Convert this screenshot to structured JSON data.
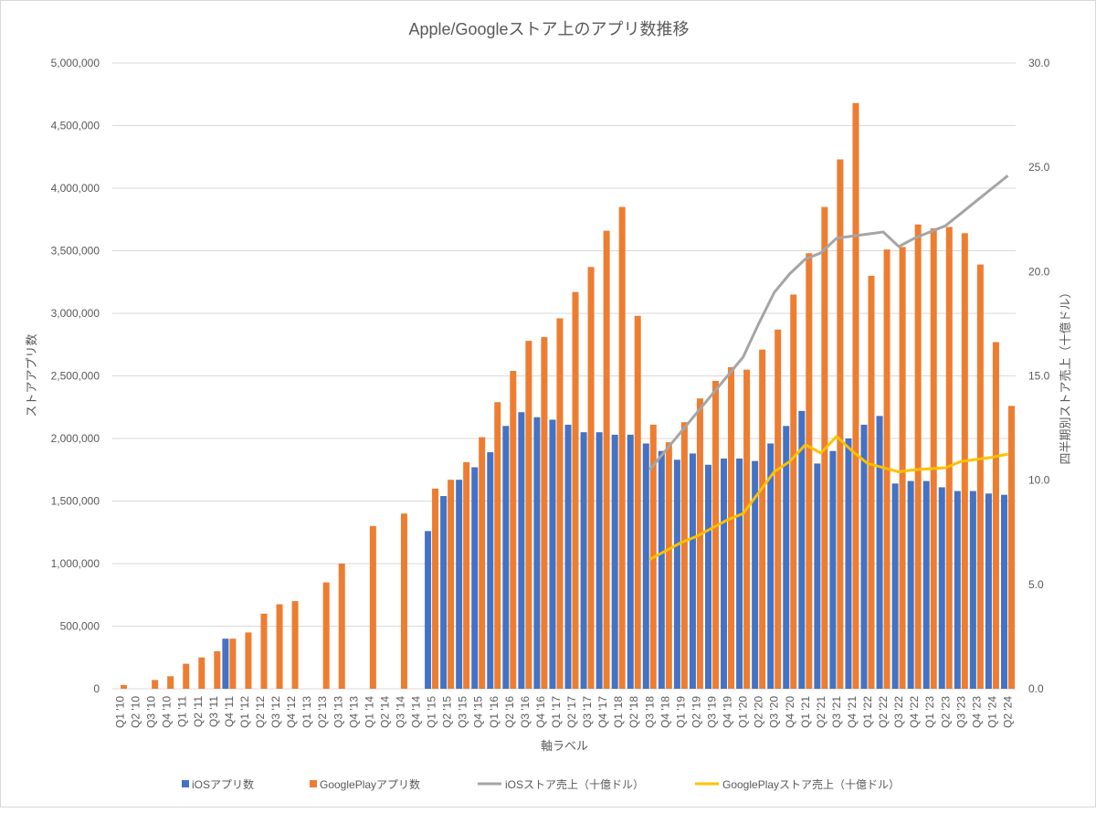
{
  "chart_data": {
    "type": "bar+line",
    "title": "Apple/Googleストア上のアプリ数推移",
    "xlabel": "軸ラベル",
    "ylabel": "ストアアプリ数",
    "y2label": "四半期別ストア売上（十億ドル）",
    "ylim": [
      0,
      5000000
    ],
    "y2lim": [
      0,
      30
    ],
    "yticks": [
      "0",
      "500,000",
      "1,000,000",
      "1,500,000",
      "2,000,000",
      "2,500,000",
      "3,000,000",
      "3,500,000",
      "4,000,000",
      "4,500,000",
      "5,000,000"
    ],
    "y2ticks": [
      "0.0",
      "5.0",
      "10.0",
      "15.0",
      "20.0",
      "25.0",
      "30.0"
    ],
    "grid": true,
    "legend_position": "bottom",
    "categories": [
      "Q1 '10",
      "Q2 '10",
      "Q3 '10",
      "Q4 '10",
      "Q1 '11",
      "Q2 '11",
      "Q3 '11",
      "Q4 '11",
      "Q1 '12",
      "Q2 '12",
      "Q3 '12",
      "Q4 '12",
      "Q1 '13",
      "Q2 '13",
      "Q3 '13",
      "Q4 '13",
      "Q1 '14",
      "Q2 '14",
      "Q3 '14",
      "Q4 '14",
      "Q1 '15",
      "Q2 '15",
      "Q3 '15",
      "Q4 '15",
      "Q1 '16",
      "Q2 '16",
      "Q3 '16",
      "Q4 '16",
      "Q1 '17",
      "Q2 '17",
      "Q3 '17",
      "Q4 '17",
      "Q1 '18",
      "Q2 '18",
      "Q3 '18",
      "Q4 '18",
      "Q1 '19",
      "Q2 '19",
      "Q3 '19",
      "Q4 '19",
      "Q1 '20",
      "Q2 '20",
      "Q3 '20",
      "Q4 '20",
      "Q1 '21",
      "Q2 '21",
      "Q3 '21",
      "Q4 '21",
      "Q1 '22",
      "Q2 '22",
      "Q3 '22",
      "Q4 '22",
      "Q1 '23",
      "Q2 '23",
      "Q3 '23",
      "Q4 '23",
      "Q1 '24",
      "Q2 '24"
    ],
    "series": [
      {
        "name": "iOSアプリ数",
        "type": "bar",
        "axis": "left",
        "color": "#4472C4",
        "values": [
          null,
          null,
          null,
          null,
          null,
          null,
          null,
          400000,
          null,
          null,
          null,
          null,
          null,
          null,
          null,
          null,
          null,
          null,
          null,
          null,
          1260000,
          1540000,
          1670000,
          1770000,
          1890000,
          2100000,
          2210000,
          2170000,
          2150000,
          2110000,
          2050000,
          2050000,
          2030000,
          2030000,
          1960000,
          1900000,
          1830000,
          1880000,
          1790000,
          1840000,
          1840000,
          1820000,
          1960000,
          2100000,
          2220000,
          1800000,
          1900000,
          2000000,
          2110000,
          2180000,
          1640000,
          1660000,
          1660000,
          1610000,
          1580000,
          1580000,
          1560000,
          1550000
        ]
      },
      {
        "name": "GooglePlayアプリ数",
        "type": "bar",
        "axis": "left",
        "color": "#ED7D31",
        "values": [
          30000,
          null,
          70000,
          100000,
          200000,
          250000,
          300000,
          400000,
          450000,
          600000,
          675000,
          700000,
          null,
          850000,
          1000000,
          null,
          1300000,
          null,
          1400000,
          null,
          1600000,
          1670000,
          1810000,
          2010000,
          2290000,
          2540000,
          2780000,
          2810000,
          2960000,
          3170000,
          3370000,
          3660000,
          3850000,
          2980000,
          2110000,
          1970000,
          2130000,
          2320000,
          2460000,
          2570000,
          2550000,
          2710000,
          2870000,
          3150000,
          3480000,
          3850000,
          4230000,
          4680000,
          3300000,
          3510000,
          3530000,
          3710000,
          3680000,
          3690000,
          3640000,
          3390000,
          2770000,
          2260000
        ]
      },
      {
        "name": "iOSストア売上（十億ドル）",
        "type": "line",
        "axis": "right",
        "color": "#A5A5A5",
        "values": [
          null,
          null,
          null,
          null,
          null,
          null,
          null,
          null,
          null,
          null,
          null,
          null,
          null,
          null,
          null,
          null,
          null,
          null,
          null,
          null,
          null,
          null,
          null,
          null,
          null,
          null,
          null,
          null,
          null,
          null,
          null,
          null,
          null,
          null,
          10.5,
          11.4,
          12.3,
          13.2,
          14.1,
          15.0,
          15.9,
          17.5,
          19.0,
          19.9,
          20.6,
          20.9,
          21.6,
          21.7,
          21.8,
          21.9,
          21.2,
          21.6,
          21.9,
          22.2,
          22.8,
          23.4,
          24.0,
          24.6
        ]
      },
      {
        "name": "GooglePlayストア売上（十億ドル）",
        "type": "line",
        "axis": "right",
        "color": "#FFC000",
        "values": [
          null,
          null,
          null,
          null,
          null,
          null,
          null,
          null,
          null,
          null,
          null,
          null,
          null,
          null,
          null,
          null,
          null,
          null,
          null,
          null,
          null,
          null,
          null,
          null,
          null,
          null,
          null,
          null,
          null,
          null,
          null,
          null,
          null,
          null,
          6.2,
          6.6,
          7.0,
          7.3,
          7.7,
          8.1,
          8.4,
          9.4,
          10.4,
          10.9,
          11.7,
          11.3,
          12.1,
          11.4,
          10.8,
          10.6,
          10.4,
          10.5,
          10.55,
          10.6,
          10.9,
          11.0,
          11.1,
          11.25
        ]
      }
    ]
  }
}
